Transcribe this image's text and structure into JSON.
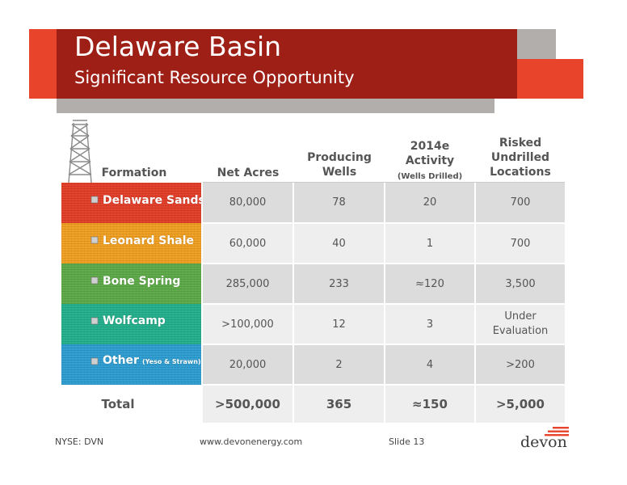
{
  "header": {
    "title": "Delaware Basin",
    "subtitle": "Significant Resource Opportunity"
  },
  "columns": {
    "formation": "Formation",
    "net_acres": "Net Acres",
    "producing_wells_1": "Producing",
    "producing_wells_2": "Wells",
    "activity_1": "2014e",
    "activity_2": "Activity",
    "activity_3": "(Wells Drilled)",
    "locations_1": "Risked",
    "locations_2": "Undrilled",
    "locations_3": "Locations"
  },
  "rows": [
    {
      "formation": "Delaware Sands",
      "note": "",
      "net_acres": "80,000",
      "wells": "78",
      "activity": "20",
      "locations": "700"
    },
    {
      "formation": "Leonard Shale",
      "note": "",
      "net_acres": "60,000",
      "wells": "40",
      "activity": "1",
      "locations": "700"
    },
    {
      "formation": "Bone Spring",
      "note": "",
      "net_acres": "285,000",
      "wells": "233",
      "activity": "≈120",
      "locations": "3,500"
    },
    {
      "formation": "Wolfcamp",
      "note": "",
      "net_acres": ">100,000",
      "wells": "12",
      "activity": "3",
      "locations_1": "Under",
      "locations_2": "Evaluation"
    },
    {
      "formation": "Other",
      "note": "(Yeso & Strawn)",
      "net_acres": "20,000",
      "wells": "2",
      "activity": "4",
      "locations": ">200"
    }
  ],
  "total": {
    "label": "Total",
    "net_acres": ">500,000",
    "wells": "365",
    "activity": "≈150",
    "locations": ">5,000"
  },
  "footer": {
    "ticker": "NYSE: DVN",
    "website": "www.devonenergy.com",
    "slide": "Slide 13",
    "logo": "devon"
  },
  "colors": {
    "header_red": "#9e1f16",
    "accent_orange": "#e8442b",
    "strata": [
      "#e13a24",
      "#ef9d1e",
      "#5aa845",
      "#1fae8a",
      "#2a9bd0"
    ]
  }
}
